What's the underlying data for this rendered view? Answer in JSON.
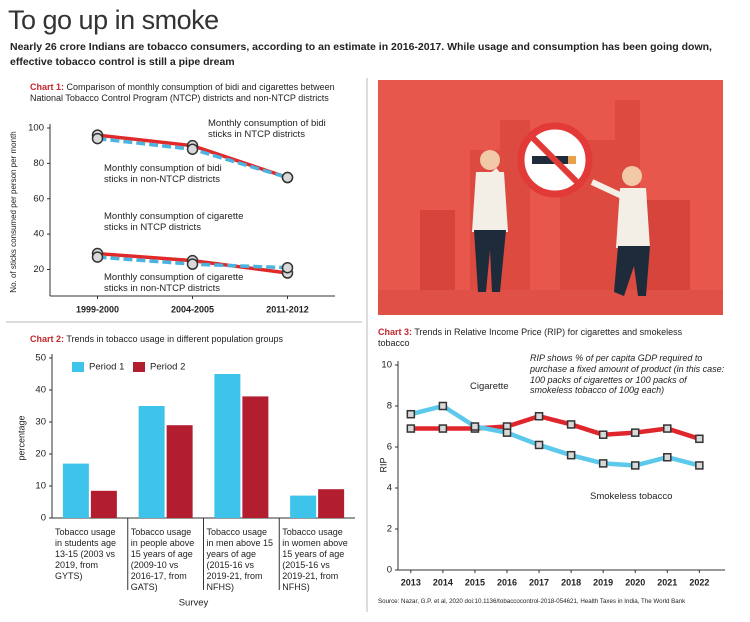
{
  "title": "To go up in smoke",
  "subtitle": "Nearly 26 crore Indians are tobacco consumers, according to an estimate in 2016-2017. While usage and consumption has been going down, effective tobacco control is still a pipe dream",
  "source": "Source: Nazar, G.P. et al, 2020 doi:10.1136/tobaccocontrol-2018-054621, Health Taxes in India, The World Bank",
  "chart_data": [
    {
      "type": "line",
      "chart_label": "Chart 1:",
      "title": "Comparison of monthly consumption of bidi and cigarettes between National Tobacco Control  Program (NTCP) districts and non-NTCP districts",
      "y_label": "No. of sticks consumed per person per month",
      "categories": [
        "1999-2000",
        "2004-2005",
        "2011-2012"
      ],
      "ylim": [
        5,
        100
      ],
      "yticks": [
        20,
        40,
        60,
        80,
        100
      ],
      "marker": "circle",
      "series": [
        {
          "name": "Monthly consumption of bidi sticks in NTCP districts",
          "color": "#e02a2a",
          "dashed": false,
          "values": [
            96,
            90,
            72
          ]
        },
        {
          "name": "Monthly consumption of bidi sticks in non-NTCP districts",
          "color": "#4ab3e0",
          "dashed": true,
          "values": [
            94,
            88,
            72
          ]
        },
        {
          "name": "Monthly consumption of cigarette sticks in NTCP districts",
          "color": "#e02a2a",
          "dashed": false,
          "values": [
            29,
            25,
            18
          ]
        },
        {
          "name": "Monthly consumption of cigarette sticks in non-NTCP districts",
          "color": "#4ab3e0",
          "dashed": true,
          "values": [
            27,
            23,
            21
          ]
        }
      ]
    },
    {
      "type": "bar",
      "chart_label": "Chart 2:",
      "title": "Trends in tobacco usage in different population groups",
      "y_label": "percentage",
      "x_label": "Survey",
      "categories": [
        "Tobacco usage in students age 13-15 (2003 vs 2019, from GYTS)",
        "Tobacco usage in people above 15 years of age (2009-10 vs 2016-17, from GATS)",
        "Tobacco usage in men above 15 years of age (2015-16 vs 2019-21, from NFHS)",
        "Tobacco usage in women above 15 years of age (2015-16 vs 2019-21, from NFHS)"
      ],
      "ylim": [
        0,
        50
      ],
      "yticks": [
        0,
        10,
        20,
        30,
        40,
        50
      ],
      "legend": "top-left",
      "series": [
        {
          "name": "Period 1",
          "color": "#3ec3ea",
          "values": [
            17,
            35,
            45,
            7
          ]
        },
        {
          "name": "Period 2",
          "color": "#b21e30",
          "values": [
            8.5,
            29,
            38,
            9
          ]
        }
      ]
    },
    {
      "type": "line",
      "chart_label": "Chart 3:",
      "title": "Trends in Relative Income Price (RIP) for cigarettes and smokeless tobacco",
      "y_label": "RIP",
      "note": "RIP shows % of per capita GDP required to purchase a fixed amount of product (in this case: 100 packs of cigarettes or 100 packs of smokeless tobacco of 100g each)",
      "x": [
        2013,
        2014,
        2015,
        2016,
        2017,
        2018,
        2019,
        2020,
        2021,
        2022
      ],
      "xlim": [
        2012.6,
        2022.8
      ],
      "xticks": [
        2013,
        2014,
        2015,
        2016,
        2017,
        2018,
        2019,
        2020,
        2021,
        2022
      ],
      "ylim": [
        0,
        10
      ],
      "yticks": [
        0,
        2,
        4,
        6,
        8,
        10
      ],
      "marker": "square",
      "series": [
        {
          "name": "Cigarette",
          "color": "#e0262d",
          "dashed": false,
          "values": [
            6.9,
            6.9,
            6.9,
            7.0,
            7.5,
            7.1,
            6.6,
            6.7,
            6.9,
            6.4
          ]
        },
        {
          "name": "Smokeless tobacco",
          "color": "#5cc8ea",
          "dashed": false,
          "values": [
            7.6,
            8.0,
            7.0,
            6.7,
            6.1,
            5.6,
            5.2,
            5.1,
            5.5,
            5.1
          ]
        }
      ]
    }
  ]
}
